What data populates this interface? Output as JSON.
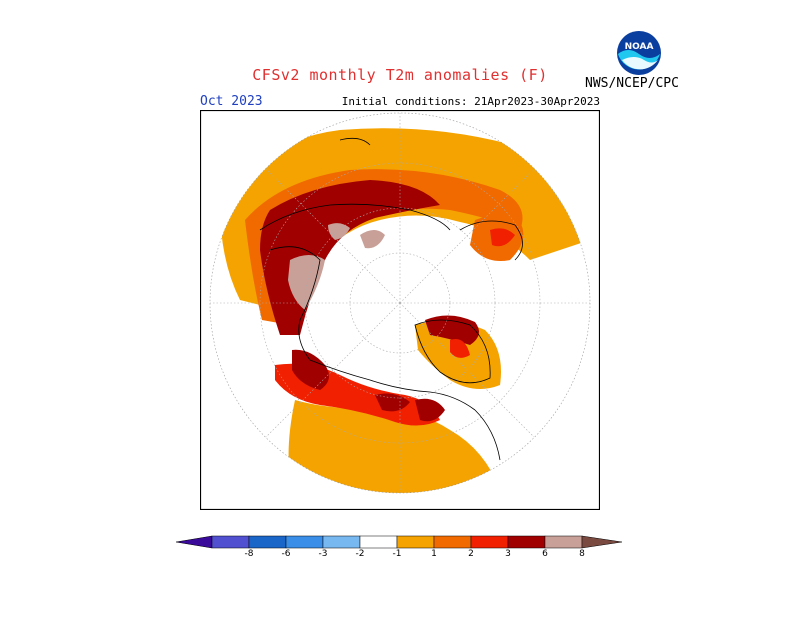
{
  "header": {
    "title": "CFSv2 monthly T2m anomalies (F)",
    "agency": "NWS/NCEP/CPC",
    "logo_text": "NOAA",
    "month": "Oct 2023",
    "initial_conditions": "Initial conditions: 21Apr2023-30Apr2023"
  },
  "legend": {
    "ticks": [
      "-8",
      "-6",
      "-3",
      "-2",
      "-1",
      "1",
      "2",
      "3",
      "6",
      "8"
    ],
    "colors": {
      "below_-8": "#3a0a9a",
      "-8_-6": "#5050d0",
      "-6_-3": "#1a66c8",
      "-3_-2": "#3a8ee8",
      "-2_-1": "#78b8f0",
      "-1_1": "#ffffff",
      "1_2": "#f5a300",
      "2_3": "#f06a00",
      "3_6": "#f02000",
      "6_8": "#a00000",
      "above_8": "#c8a098",
      "over": "#7a4a40"
    }
  },
  "map": {
    "projection": "north-polar-stereographic",
    "colors": {
      "land_outline": "#000000",
      "graticule": "#aaaaaa",
      "background": "#ffffff"
    }
  }
}
